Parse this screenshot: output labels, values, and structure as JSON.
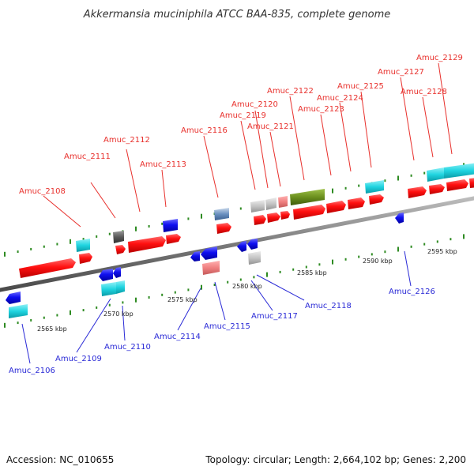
{
  "title": "Akkermansia muciniphila ATCC BAA-835, complete genome",
  "footer": {
    "accession": "Accession: NC_010655",
    "summary": "Topology: circular; Length: 2,664,102 bp; Genes: 2,200"
  },
  "colors": {
    "forward_label": "#e8302c",
    "reverse_label": "#2a2ad6",
    "cds_forward": "#ff1a1a",
    "cds_reverse": "#1c1cf0",
    "rna": "#1fd4e0",
    "pseudo": "#f08080",
    "hypothetical": "#c4c4c4",
    "special": "#6b8f1e",
    "ticks": "#2e8b22",
    "backbone": "#888888"
  },
  "kbp_labels": [
    "2565 kbp",
    "2570 kbp",
    "2575 kbp",
    "2580 kbp",
    "2585 kbp",
    "2590 kbp",
    "2595 kbp"
  ],
  "forward_genes": [
    "Amuc_2108",
    "Amuc_2111",
    "Amuc_2112",
    "Amuc_2113",
    "Amuc_2116",
    "Amuc_2119",
    "Amuc_2120",
    "Amuc_2121",
    "Amuc_2122",
    "Amuc_2123",
    "Amuc_2124",
    "Amuc_2125",
    "Amuc_2127",
    "Amuc_2128",
    "Amuc_2129"
  ],
  "reverse_genes": [
    "Amuc_2106",
    "Amuc_2109",
    "Amuc_2110",
    "Amuc_2114",
    "Amuc_2115",
    "Amuc_2117",
    "Amuc_2118",
    "Amuc_2126"
  ]
}
